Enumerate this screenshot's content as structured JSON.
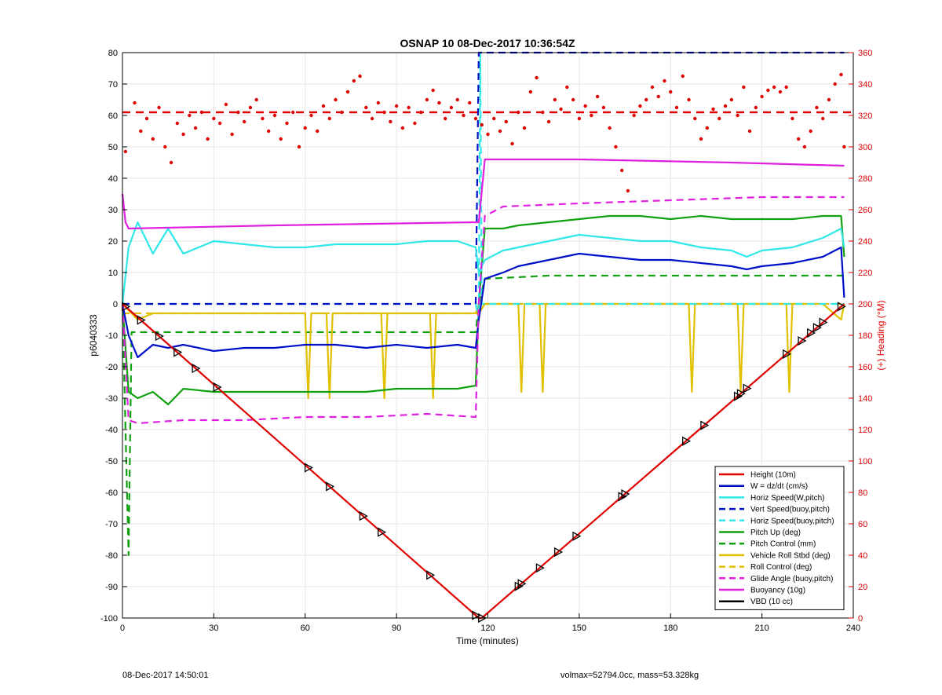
{
  "footer": {
    "left": "08-Dec-2017 14:50:01",
    "right": "volmax=52794.0cc, mass=53.328kg"
  },
  "colors": {
    "height": "#e00000",
    "w": "#0010c8",
    "horiz": "#30e8e8",
    "pitch": "#10a010",
    "roll": "#e0c000",
    "glide": "#e020e0",
    "buoyancy": "#e020e0",
    "vbd": "#000000",
    "heading": "#e00000"
  },
  "chart_data": {
    "type": "line",
    "title": "OSNAP 10 08-Dec-2017 10:36:54Z",
    "xlabel": "Time (minutes)",
    "ylabel": "p6040333",
    "y2label": "(+) Heading (°M)",
    "xlim": [
      0,
      240
    ],
    "ylim": [
      -100,
      80
    ],
    "y2lim": [
      0,
      360
    ],
    "xticks": [
      0,
      30,
      60,
      90,
      120,
      150,
      180,
      210,
      240
    ],
    "yticks": [
      -100,
      -90,
      -80,
      -70,
      -60,
      -50,
      -40,
      -30,
      -20,
      -10,
      0,
      10,
      20,
      30,
      40,
      50,
      60,
      70,
      80
    ],
    "y2ticks": [
      0,
      20,
      40,
      60,
      80,
      100,
      120,
      140,
      160,
      180,
      200,
      220,
      240,
      260,
      280,
      300,
      320,
      340,
      360
    ],
    "grid": true,
    "legend_position": "bottom-right",
    "series": [
      {
        "name": "Height (10m)",
        "color": "#e00000",
        "style": "solid",
        "x": [
          0,
          117,
          118,
          237
        ],
        "y": [
          0,
          -100,
          -100,
          0
        ]
      },
      {
        "name": "W = dz/dt (cm/s)",
        "color": "#0010c8",
        "style": "solid",
        "x": [
          0,
          2,
          5,
          10,
          15,
          20,
          30,
          40,
          50,
          60,
          70,
          80,
          90,
          100,
          110,
          116,
          117,
          119,
          125,
          130,
          140,
          150,
          160,
          170,
          180,
          190,
          200,
          205,
          210,
          220,
          230,
          236,
          237
        ],
        "y": [
          0,
          -10,
          -17,
          -13,
          -14,
          -13,
          -15,
          -14,
          -14,
          -13,
          -13,
          -14,
          -13,
          -14,
          -13,
          -14,
          -5,
          8,
          10,
          12,
          14,
          16,
          15,
          14,
          14,
          13,
          12,
          11,
          12,
          13,
          15,
          18,
          2
        ]
      },
      {
        "name": "Horiz Speed(W,pitch)",
        "color": "#30e8e8",
        "style": "solid",
        "x": [
          0,
          2,
          5,
          10,
          15,
          20,
          30,
          40,
          50,
          60,
          70,
          80,
          90,
          100,
          110,
          116,
          117,
          119,
          125,
          130,
          140,
          150,
          160,
          170,
          180,
          190,
          200,
          205,
          210,
          220,
          230,
          236,
          237
        ],
        "y": [
          0,
          18,
          26,
          16,
          24,
          16,
          20,
          19,
          18,
          18,
          19,
          19,
          19,
          20,
          20,
          18,
          10,
          14,
          17,
          18,
          20,
          22,
          21,
          20,
          20,
          18,
          17,
          15,
          17,
          18,
          21,
          24,
          18
        ]
      },
      {
        "name": "Vert Speed(buoy,pitch)",
        "color": "#0010c8",
        "style": "dashed",
        "x": [
          0,
          116,
          117,
          237
        ],
        "y": [
          0,
          0,
          80,
          80
        ]
      },
      {
        "name": "Horiz Speed(buoy,pitch)",
        "color": "#30e8e8",
        "style": "dashed",
        "x": [
          0,
          116,
          117,
          117.5,
          118,
          237
        ],
        "y": [
          0,
          0,
          -5,
          80,
          0,
          0
        ]
      },
      {
        "name": "Pitch Up (deg)",
        "color": "#10a010",
        "style": "solid",
        "x": [
          0,
          2,
          5,
          10,
          15,
          20,
          30,
          40,
          50,
          60,
          70,
          80,
          90,
          100,
          110,
          116,
          117,
          119,
          125,
          130,
          140,
          150,
          160,
          170,
          180,
          190,
          200,
          210,
          220,
          230,
          236,
          237
        ],
        "y": [
          0,
          -28,
          -30,
          -28,
          -32,
          -27,
          -28,
          -28,
          -28,
          -28,
          -28,
          -28,
          -27,
          -27,
          -27,
          -26,
          0,
          24,
          24,
          25,
          26,
          27,
          28,
          28,
          27,
          28,
          27,
          27,
          27,
          28,
          28,
          15
        ]
      },
      {
        "name": "Pitch Control (mm)",
        "color": "#10a010",
        "style": "dashed",
        "x": [
          0,
          2,
          3,
          116,
          117,
          119,
          140,
          237
        ],
        "y": [
          0,
          -80,
          -9,
          -9,
          0,
          8,
          9,
          9
        ]
      },
      {
        "name": "Vehicle Roll Stbd (deg)",
        "color": "#e0c000",
        "style": "solid",
        "x": [
          0,
          5,
          10,
          20,
          30,
          60,
          61,
          62,
          67,
          68,
          69,
          80,
          85,
          86,
          87,
          101,
          102,
          103,
          116,
          117,
          119,
          130,
          131,
          132,
          137,
          138,
          139,
          150,
          160,
          170,
          186,
          187,
          188,
          202,
          203,
          204,
          218,
          219,
          220,
          230,
          236,
          237
        ],
        "y": [
          0,
          -5,
          -3,
          -3,
          -3,
          -3,
          -30,
          -3,
          -3,
          -30,
          -3,
          -3,
          -3,
          -30,
          -3,
          -3,
          -30,
          -3,
          -3,
          -3,
          0,
          0,
          -28,
          0,
          0,
          -28,
          0,
          0,
          0,
          0,
          0,
          -28,
          0,
          0,
          -28,
          0,
          0,
          -28,
          0,
          0,
          -5,
          0
        ]
      },
      {
        "name": "Roll Control (deg)",
        "color": "#e0c000",
        "style": "dashed",
        "x": [
          0,
          116,
          117,
          237
        ],
        "y": [
          -3,
          -3,
          0,
          0
        ]
      },
      {
        "name": "Glide Angle (buoy,pitch)",
        "color": "#e020e0",
        "style": "dashed",
        "x": [
          0,
          2,
          5,
          20,
          40,
          60,
          80,
          100,
          116,
          117,
          119,
          125,
          150,
          180,
          210,
          237
        ],
        "y": [
          0,
          -37,
          -38,
          -37,
          -37,
          -36,
          -36,
          -35,
          -36,
          0,
          28,
          31,
          32,
          33,
          34,
          34
        ]
      },
      {
        "name": "Buoyancy (10g)",
        "color": "#e020e0",
        "style": "solid",
        "x": [
          0,
          1,
          2,
          50,
          116,
          117,
          119,
          150,
          200,
          237
        ],
        "y": [
          35,
          26,
          24,
          25,
          26,
          26,
          46,
          46,
          45,
          44
        ]
      },
      {
        "name": "VBD (10 cc)",
        "color": "#000000",
        "style": "solid",
        "x": [
          0,
          1,
          2,
          116,
          117,
          119,
          237
        ],
        "y": [
          0,
          -5,
          -10,
          -10,
          -10,
          10,
          10
        ]
      }
    ],
    "heading": {
      "name": "Heading",
      "axis": "y2",
      "color": "#e00000",
      "mean_dashed": 322,
      "points": [
        {
          "x": 1,
          "y": 297
        },
        {
          "x": 4,
          "y": 328
        },
        {
          "x": 6,
          "y": 310
        },
        {
          "x": 8,
          "y": 318
        },
        {
          "x": 10,
          "y": 305
        },
        {
          "x": 12,
          "y": 325
        },
        {
          "x": 14,
          "y": 300
        },
        {
          "x": 16,
          "y": 290
        },
        {
          "x": 18,
          "y": 315
        },
        {
          "x": 20,
          "y": 308
        },
        {
          "x": 22,
          "y": 320
        },
        {
          "x": 24,
          "y": 312
        },
        {
          "x": 26,
          "y": 322
        },
        {
          "x": 28,
          "y": 305
        },
        {
          "x": 30,
          "y": 318
        },
        {
          "x": 32,
          "y": 315
        },
        {
          "x": 34,
          "y": 327
        },
        {
          "x": 36,
          "y": 308
        },
        {
          "x": 38,
          "y": 322
        },
        {
          "x": 40,
          "y": 316
        },
        {
          "x": 42,
          "y": 325
        },
        {
          "x": 44,
          "y": 330
        },
        {
          "x": 46,
          "y": 318
        },
        {
          "x": 48,
          "y": 310
        },
        {
          "x": 50,
          "y": 320
        },
        {
          "x": 52,
          "y": 305
        },
        {
          "x": 54,
          "y": 315
        },
        {
          "x": 56,
          "y": 322
        },
        {
          "x": 58,
          "y": 300
        },
        {
          "x": 60,
          "y": 312
        },
        {
          "x": 62,
          "y": 320
        },
        {
          "x": 64,
          "y": 310
        },
        {
          "x": 66,
          "y": 326
        },
        {
          "x": 68,
          "y": 318
        },
        {
          "x": 70,
          "y": 330
        },
        {
          "x": 72,
          "y": 322
        },
        {
          "x": 74,
          "y": 335
        },
        {
          "x": 76,
          "y": 342
        },
        {
          "x": 78,
          "y": 345
        },
        {
          "x": 80,
          "y": 325
        },
        {
          "x": 82,
          "y": 318
        },
        {
          "x": 84,
          "y": 328
        },
        {
          "x": 86,
          "y": 322
        },
        {
          "x": 88,
          "y": 316
        },
        {
          "x": 90,
          "y": 326
        },
        {
          "x": 92,
          "y": 312
        },
        {
          "x": 94,
          "y": 325
        },
        {
          "x": 96,
          "y": 315
        },
        {
          "x": 98,
          "y": 322
        },
        {
          "x": 100,
          "y": 330
        },
        {
          "x": 102,
          "y": 336
        },
        {
          "x": 104,
          "y": 328
        },
        {
          "x": 106,
          "y": 318
        },
        {
          "x": 108,
          "y": 325
        },
        {
          "x": 110,
          "y": 330
        },
        {
          "x": 112,
          "y": 320
        },
        {
          "x": 114,
          "y": 328
        },
        {
          "x": 116,
          "y": 318
        },
        {
          "x": 118,
          "y": 314
        },
        {
          "x": 120,
          "y": 308
        },
        {
          "x": 122,
          "y": 318
        },
        {
          "x": 124,
          "y": 310
        },
        {
          "x": 126,
          "y": 316
        },
        {
          "x": 128,
          "y": 302
        },
        {
          "x": 130,
          "y": 322
        },
        {
          "x": 132,
          "y": 312
        },
        {
          "x": 134,
          "y": 335
        },
        {
          "x": 136,
          "y": 344
        },
        {
          "x": 138,
          "y": 322
        },
        {
          "x": 140,
          "y": 316
        },
        {
          "x": 142,
          "y": 330
        },
        {
          "x": 144,
          "y": 324
        },
        {
          "x": 146,
          "y": 338
        },
        {
          "x": 148,
          "y": 330
        },
        {
          "x": 150,
          "y": 318
        },
        {
          "x": 152,
          "y": 326
        },
        {
          "x": 154,
          "y": 320
        },
        {
          "x": 156,
          "y": 332
        },
        {
          "x": 158,
          "y": 325
        },
        {
          "x": 160,
          "y": 312
        },
        {
          "x": 162,
          "y": 300
        },
        {
          "x": 164,
          "y": 285
        },
        {
          "x": 166,
          "y": 272
        },
        {
          "x": 168,
          "y": 320
        },
        {
          "x": 170,
          "y": 326
        },
        {
          "x": 172,
          "y": 330
        },
        {
          "x": 174,
          "y": 338
        },
        {
          "x": 176,
          "y": 332
        },
        {
          "x": 178,
          "y": 342
        },
        {
          "x": 180,
          "y": 335
        },
        {
          "x": 182,
          "y": 325
        },
        {
          "x": 184,
          "y": 345
        },
        {
          "x": 186,
          "y": 330
        },
        {
          "x": 188,
          "y": 318
        },
        {
          "x": 190,
          "y": 305
        },
        {
          "x": 192,
          "y": 312
        },
        {
          "x": 194,
          "y": 324
        },
        {
          "x": 196,
          "y": 318
        },
        {
          "x": 198,
          "y": 326
        },
        {
          "x": 200,
          "y": 330
        },
        {
          "x": 202,
          "y": 320
        },
        {
          "x": 204,
          "y": 338
        },
        {
          "x": 206,
          "y": 310
        },
        {
          "x": 208,
          "y": 325
        },
        {
          "x": 210,
          "y": 332
        },
        {
          "x": 212,
          "y": 336
        },
        {
          "x": 214,
          "y": 338
        },
        {
          "x": 216,
          "y": 335
        },
        {
          "x": 218,
          "y": 338
        },
        {
          "x": 220,
          "y": 318
        },
        {
          "x": 222,
          "y": 305
        },
        {
          "x": 224,
          "y": 300
        },
        {
          "x": 226,
          "y": 310
        },
        {
          "x": 228,
          "y": 325
        },
        {
          "x": 230,
          "y": 318
        },
        {
          "x": 232,
          "y": 330
        },
        {
          "x": 234,
          "y": 340
        },
        {
          "x": 236,
          "y": 346
        },
        {
          "x": 237,
          "y": 300
        }
      ]
    },
    "markers": {
      "series": "Height (10m)",
      "x": [
        1,
        6,
        12,
        18,
        24,
        31,
        61,
        68,
        79,
        85,
        101,
        116,
        118,
        130,
        131,
        137,
        143,
        149,
        164,
        165,
        185,
        191,
        202,
        203,
        205,
        218,
        223,
        226,
        228,
        230,
        236
      ]
    }
  }
}
